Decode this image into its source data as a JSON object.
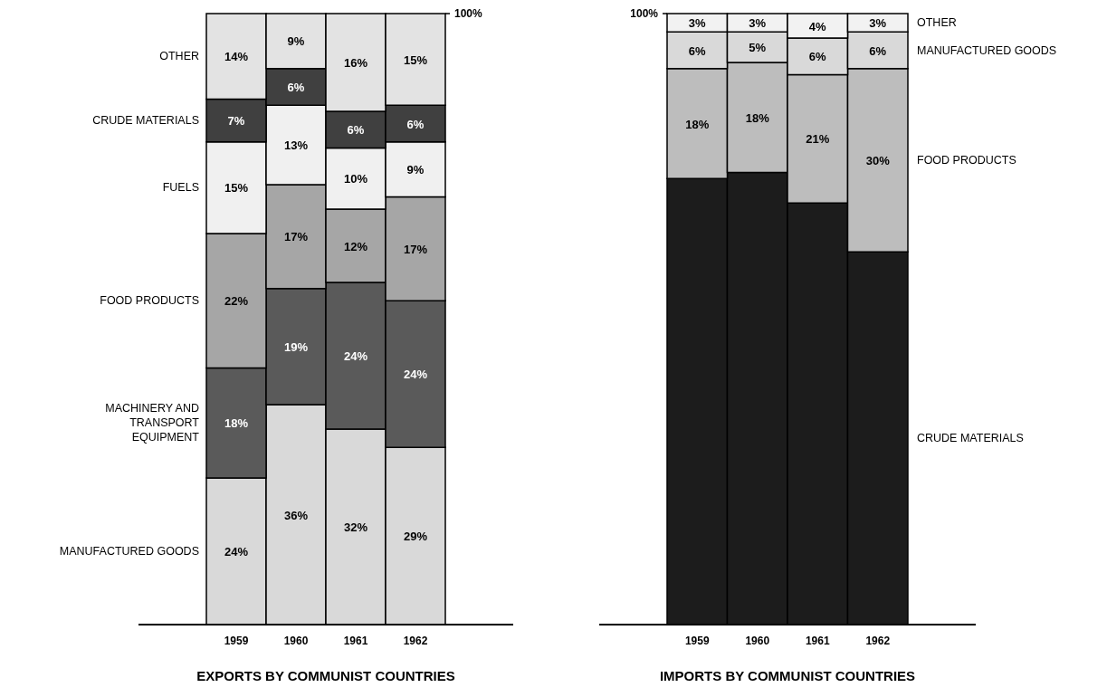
{
  "chart_data": [
    {
      "type": "bar",
      "title": "EXPORTS BY COMMUNIST COUNTRIES",
      "categories": [
        "1959",
        "1960",
        "1961",
        "1962"
      ],
      "stacked": true,
      "ylim": [
        0,
        100
      ],
      "yticks": [
        {
          "value": 100,
          "label": "100%"
        }
      ],
      "legend": "left",
      "series": [
        {
          "name": "MANUFACTURED GOODS",
          "color": "#d9d9d9",
          "values": [
            24,
            36,
            32,
            29
          ],
          "value_labels": [
            "24%",
            "36%",
            "32%",
            "29%"
          ]
        },
        {
          "name": "MACHINERY AND TRANSPORT EQUIPMENT",
          "color": "#5a5a5a",
          "values": [
            18,
            19,
            24,
            24
          ],
          "value_labels": [
            "18%",
            "19%",
            "24%",
            "24%"
          ]
        },
        {
          "name": "FOOD PRODUCTS",
          "color": "#a6a6a6",
          "values": [
            22,
            17,
            12,
            17
          ],
          "value_labels": [
            "22%",
            "17%",
            "12%",
            "17%"
          ]
        },
        {
          "name": "FUELS",
          "color": "#f0f0f0",
          "values": [
            15,
            13,
            10,
            9
          ],
          "value_labels": [
            "15%",
            "13%",
            "10%",
            "9%"
          ]
        },
        {
          "name": "CRUDE MATERIALS",
          "color": "#404040",
          "values": [
            7,
            6,
            6,
            6
          ],
          "value_labels": [
            "7%",
            "6%",
            "6%",
            "6%"
          ]
        },
        {
          "name": "OTHER",
          "color": "#e3e3e3",
          "values": [
            14,
            9,
            16,
            15
          ],
          "value_labels": [
            "14%",
            "9%",
            "16%",
            "15%"
          ]
        }
      ]
    },
    {
      "type": "bar",
      "title": "IMPORTS BY COMMUNIST COUNTRIES",
      "categories": [
        "1959",
        "1960",
        "1961",
        "1962"
      ],
      "stacked": true,
      "ylim": [
        0,
        100
      ],
      "yticks": [
        {
          "value": 100,
          "label": "100%"
        }
      ],
      "legend": "right",
      "series": [
        {
          "name": "CRUDE MATERIALS",
          "color": "#1c1c1c",
          "values": [
            73,
            74,
            69,
            61
          ]
        },
        {
          "name": "FOOD PRODUCTS",
          "color": "#bdbdbd",
          "values": [
            18,
            18,
            21,
            30
          ],
          "value_labels": [
            "18%",
            "18%",
            "21%",
            "30%"
          ]
        },
        {
          "name": "MANUFACTURED GOODS",
          "color": "#d9d9d9",
          "values": [
            6,
            5,
            6,
            6
          ],
          "value_labels": [
            "6%",
            "5%",
            "6%",
            "6%"
          ]
        },
        {
          "name": "OTHER",
          "color": "#f2f2f2",
          "values": [
            3,
            3,
            4,
            3
          ],
          "value_labels": [
            "3%",
            "3%",
            "4%",
            "3%"
          ]
        }
      ]
    }
  ]
}
